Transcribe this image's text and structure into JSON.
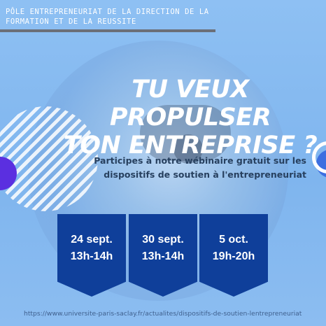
{
  "header": {
    "organization": "PÔLE ENTREPRENEURIAT DE LA DIRECTION DE LA\nFORMATION ET DE LA REUSSITE"
  },
  "headline": {
    "line1": "TU VEUX PROPULSER",
    "line2": "TON ENTREPRISE ?"
  },
  "subtitle": {
    "line1": "Participes à notre wébinaire gratuit sur les",
    "line2": "dispositifs de soutien à l'entrepreneuriat"
  },
  "sessions": [
    {
      "date": "24 sept.",
      "time": "13h-14h"
    },
    {
      "date": "30 sept.",
      "time": "13h-14h"
    },
    {
      "date": "5 oct.",
      "time": "19h-20h"
    }
  ],
  "footer": {
    "url": "https://www.universite-paris-saclay.fr/actualites/dispositifs-de-soutien-lentrepreneuriat"
  },
  "colors": {
    "background": "#84b7f0",
    "date_box": "#0f3f9a",
    "accent_purple": "#5b2fe0",
    "accent_blue": "#3d6fe0"
  }
}
